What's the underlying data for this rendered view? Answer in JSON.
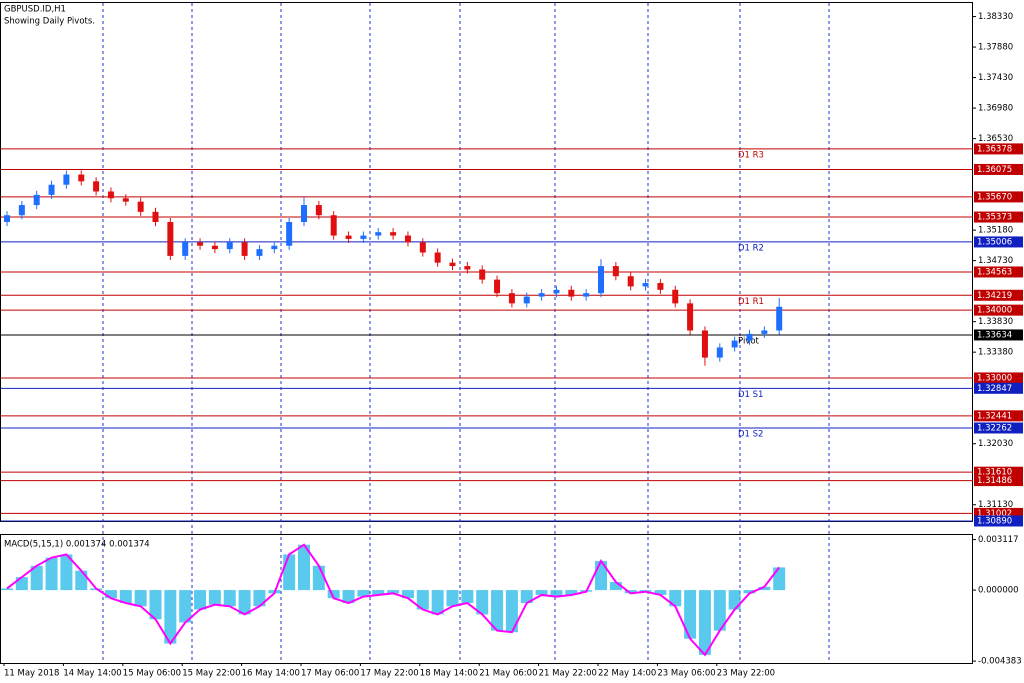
{
  "chart_data": {
    "type": "candlestick",
    "title": "GBPUSD.ID,H1",
    "subtitle": "Showing Daily Pivots.",
    "categories": [
      "11 May 2018",
      null,
      null,
      null,
      "14 May 14:00",
      null,
      null,
      null,
      "15 May 06:00",
      null,
      null,
      null,
      "15 May 22:00",
      null,
      null,
      null,
      "16 May 14:00",
      null,
      null,
      null,
      "17 May 06:00",
      null,
      null,
      null,
      "17 May 22:00",
      null,
      null,
      null,
      "18 May 14:00",
      null,
      null,
      null,
      "21 May 06:00",
      null,
      null,
      null,
      "21 May 22:00",
      null,
      null,
      null,
      "22 May 14:00",
      null,
      null,
      null,
      "23 May 06:00",
      null,
      null,
      null,
      "23 May 22:00",
      null,
      null,
      null,
      null
    ],
    "open": [
      1.353,
      1.354,
      1.3555,
      1.357,
      1.3585,
      1.36,
      1.359,
      1.3575,
      1.3565,
      1.356,
      1.3545,
      1.353,
      1.348,
      1.35,
      1.3495,
      1.349,
      1.35,
      1.348,
      1.349,
      1.3495,
      1.353,
      1.3555,
      1.354,
      1.351,
      1.3505,
      1.351,
      1.3515,
      1.351,
      1.35,
      1.3485,
      1.347,
      1.3465,
      1.346,
      1.3445,
      1.3425,
      1.341,
      1.342,
      1.3425,
      1.343,
      1.342,
      1.3425,
      1.3465,
      1.345,
      1.3435,
      1.344,
      1.343,
      1.341,
      1.337,
      1.333,
      1.3345,
      1.3355,
      1.3365,
      1.337
    ],
    "high": [
      1.3546,
      1.3561,
      1.3576,
      1.3591,
      1.3606,
      1.3606,
      1.3596,
      1.3581,
      1.3571,
      1.3566,
      1.3551,
      1.3536,
      1.3506,
      1.3506,
      1.3501,
      1.3506,
      1.3506,
      1.3496,
      1.3501,
      1.3536,
      1.3566,
      1.3561,
      1.3546,
      1.3516,
      1.3516,
      1.3521,
      1.3521,
      1.3516,
      1.3506,
      1.3491,
      1.3476,
      1.3471,
      1.3466,
      1.3451,
      1.3431,
      1.3426,
      1.3431,
      1.3436,
      1.3436,
      1.3431,
      1.3475,
      1.3471,
      1.3456,
      1.3446,
      1.3446,
      1.3436,
      1.3416,
      1.3376,
      1.3351,
      1.3361,
      1.3371,
      1.3376,
      1.3418
    ],
    "low": [
      1.3524,
      1.3534,
      1.3549,
      1.3564,
      1.3579,
      1.3584,
      1.3569,
      1.3559,
      1.3554,
      1.3539,
      1.3524,
      1.3474,
      1.3474,
      1.3489,
      1.3484,
      1.3484,
      1.3474,
      1.3474,
      1.3484,
      1.3489,
      1.3524,
      1.3534,
      1.3504,
      1.3499,
      1.3499,
      1.3504,
      1.3504,
      1.3494,
      1.3479,
      1.3464,
      1.3459,
      1.3454,
      1.3439,
      1.3419,
      1.3404,
      1.3404,
      1.3414,
      1.3419,
      1.3414,
      1.3414,
      1.3419,
      1.3444,
      1.3429,
      1.3429,
      1.3424,
      1.3404,
      1.3364,
      1.3318,
      1.3324,
      1.3339,
      1.3349,
      1.3359,
      1.3364
    ],
    "close": [
      1.354,
      1.3555,
      1.357,
      1.3585,
      1.36,
      1.359,
      1.3575,
      1.3565,
      1.356,
      1.3545,
      1.353,
      1.348,
      1.35,
      1.3495,
      1.349,
      1.35,
      1.348,
      1.349,
      1.3495,
      1.353,
      1.3555,
      1.354,
      1.351,
      1.3505,
      1.351,
      1.3515,
      1.351,
      1.35,
      1.3485,
      1.347,
      1.3465,
      1.346,
      1.3445,
      1.3425,
      1.341,
      1.342,
      1.3425,
      1.343,
      1.342,
      1.3425,
      1.3465,
      1.345,
      1.3435,
      1.344,
      1.343,
      1.341,
      1.337,
      1.333,
      1.3345,
      1.3355,
      1.3365,
      1.337,
      1.3405
    ],
    "up_color": "#1e6fff",
    "down_color": "#e01010",
    "ylim": [
      1.3089,
      1.3853
    ],
    "yticks": [
      {
        "value": 1.3833,
        "label": "1.38330"
      },
      {
        "value": 1.3788,
        "label": "1.37880"
      },
      {
        "value": 1.3743,
        "label": "1.37430"
      },
      {
        "value": 1.3698,
        "label": "1.36980"
      },
      {
        "value": 1.3653,
        "label": "1.36530"
      },
      {
        "value": 1.3518,
        "label": "1.35180"
      },
      {
        "value": 1.3473,
        "label": "1.34730"
      },
      {
        "value": 1.3383,
        "label": "1.33830"
      },
      {
        "value": 1.3338,
        "label": "1.33380"
      },
      {
        "value": 1.3203,
        "label": "1.32030"
      },
      {
        "value": 1.3113,
        "label": "1.31130"
      }
    ],
    "levels": [
      {
        "value": 1.36378,
        "color": "#c00000",
        "name": "D1 R3"
      },
      {
        "value": 1.36075,
        "color": "#c00000"
      },
      {
        "value": 1.3567,
        "label": "1.35670",
        "color": "#c00000"
      },
      {
        "value": 1.35373,
        "color": "#c00000"
      },
      {
        "value": 1.35006,
        "color": "#1020c0",
        "name": "D1 R2"
      },
      {
        "value": 1.34563,
        "color": "#c00000"
      },
      {
        "value": 1.34219,
        "color": "#c00000",
        "name": "D1 R1"
      },
      {
        "value": 1.34,
        "label": "1.34000",
        "color": "#c00000"
      },
      {
        "value": 1.33634,
        "color": "#000000",
        "name": "Pivot"
      },
      {
        "value": 1.33,
        "label": "1.33000",
        "color": "#c00000"
      },
      {
        "value": 1.32847,
        "color": "#1020c0",
        "name": "D1 S1"
      },
      {
        "value": 1.32441,
        "color": "#c00000"
      },
      {
        "value": 1.32262,
        "color": "#1020c0",
        "name": "D1 S2"
      },
      {
        "value": 1.3161,
        "label": "1.31610",
        "color": "#c00000"
      },
      {
        "value": 1.31486,
        "color": "#c00000"
      },
      {
        "value": 1.31002,
        "color": "#c00000"
      },
      {
        "value": 1.3089,
        "label": "1.30890",
        "color": "#1020c0"
      }
    ],
    "macd": {
      "label": "MACD(5,15,1) 0.001374 0.001374",
      "values": [
        0.0001,
        0.0008,
        0.0015,
        0.002,
        0.0022,
        0.0012,
        0.0001,
        -0.0005,
        -0.0008,
        -0.001,
        -0.0018,
        -0.0033,
        -0.002,
        -0.0012,
        -0.0009,
        -0.001,
        -0.0015,
        -0.001,
        -0.0002,
        0.0022,
        0.0028,
        0.0015,
        -0.0005,
        -0.0008,
        -0.0004,
        -0.0003,
        -0.0002,
        -0.0005,
        -0.0012,
        -0.0015,
        -0.001,
        -0.0008,
        -0.0015,
        -0.0025,
        -0.0026,
        -0.0008,
        -0.0003,
        -0.0004,
        -0.0003,
        -0.0001,
        0.0018,
        0.0005,
        -0.0002,
        -0.0001,
        -0.0003,
        -0.001,
        -0.003,
        -0.004,
        -0.0025,
        -0.0012,
        -0.0002,
        0.0002,
        0.0014
      ],
      "bar_color": "#22b8e8",
      "line_color": "#ff00ff",
      "ylim": [
        -0.0045,
        0.0034
      ],
      "yticks": [
        0.003117,
        {
          "value": 0,
          "label": "0.000000"
        },
        -0.004383
      ]
    }
  }
}
